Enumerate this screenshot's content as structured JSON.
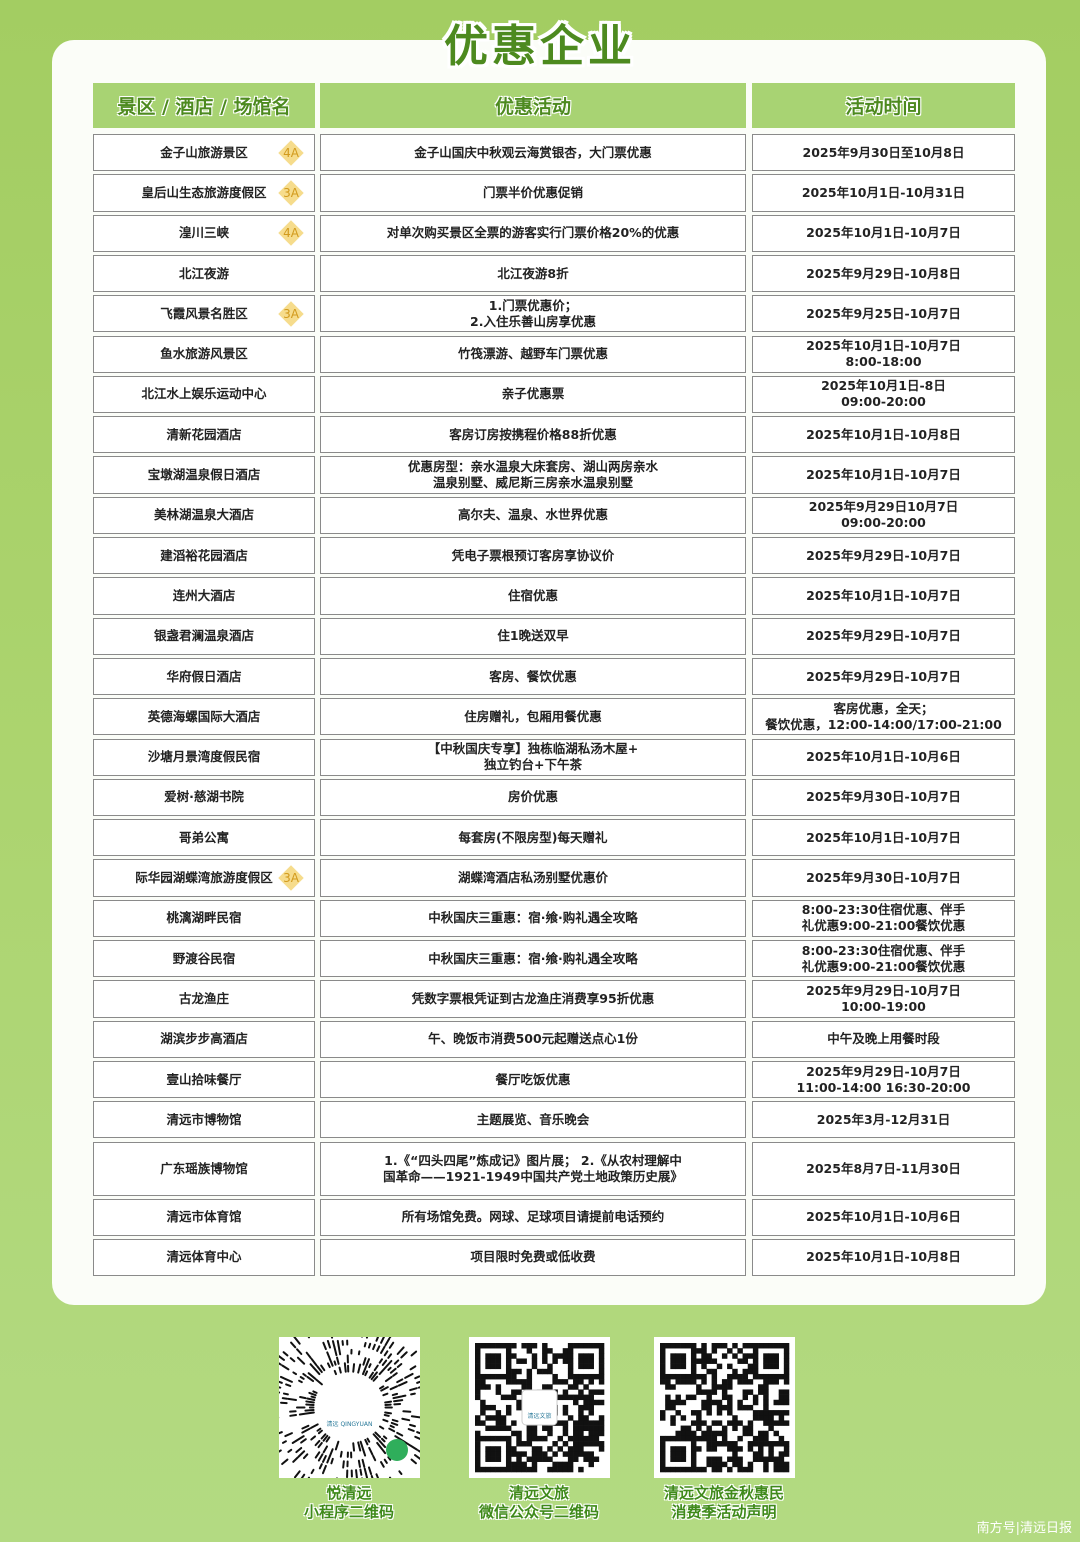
{
  "title": "优惠企业",
  "headers": [
    "景区 / 酒店 / 场馆名",
    "优惠活动",
    "活动时间"
  ],
  "rows": [
    {
      "name": "金子山旅游景区",
      "badge": "4A",
      "activity": "金子山国庆中秋观云海赏银杏，大门票优惠",
      "time": "2025年9月30日至10月8日"
    },
    {
      "name": "皇后山生态旅游度假区",
      "badge": "3A",
      "activity": "门票半价优惠促销",
      "time": "2025年10月1日-10月31日"
    },
    {
      "name": "湟川三峡",
      "badge": "4A",
      "activity": "对单次购买景区全票的游客实行门票价格20%的优惠",
      "time": "2025年10月1日-10月7日"
    },
    {
      "name": "北江夜游",
      "activity": "北江夜游8折",
      "time": "2025年9月29日-10月8日"
    },
    {
      "name": "飞霞风景名胜区",
      "badge": "3A",
      "activity": "1.门票优惠价；\n2.入住乐善山房享优惠",
      "time": "2025年9月25日-10月7日"
    },
    {
      "name": "鱼水旅游风景区",
      "activity": "竹筏漂游、越野车门票优惠",
      "time": "2025年10月1日-10月7日\n8:00-18:00"
    },
    {
      "name": "北江水上娱乐运动中心",
      "activity": "亲子优惠票",
      "time": "2025年10月1日-8日\n09:00-20:00"
    },
    {
      "name": "清新花园酒店",
      "activity": "客房订房按携程价格88折优惠",
      "time": "2025年10月1日-10月8日"
    },
    {
      "name": "宝墩湖温泉假日酒店",
      "activity": "优惠房型：亲水温泉大床套房、湖山两房亲水\n温泉别墅、威尼斯三房亲水温泉别墅",
      "time": "2025年10月1日-10月7日"
    },
    {
      "name": "美林湖温泉大酒店",
      "activity": "高尔夫、温泉、水世界优惠",
      "time": "2025年9月29日10月7日\n09:00-20:00"
    },
    {
      "name": "建滔裕花园酒店",
      "activity": "凭电子票根预订客房享协议价",
      "time": "2025年9月29日-10月7日"
    },
    {
      "name": "连州大酒店",
      "activity": "住宿优惠",
      "time": "2025年10月1日-10月7日"
    },
    {
      "name": "银盏君澜温泉酒店",
      "activity": "住1晚送双早",
      "time": "2025年9月29日-10月7日"
    },
    {
      "name": "华府假日酒店",
      "activity": "客房、餐饮优惠",
      "time": "2025年9月29日-10月7日"
    },
    {
      "name": "英德海螺国际大酒店",
      "activity": "住房赠礼，包厢用餐优惠",
      "time": "客房优惠，全天；\n餐饮优惠，12:00-14:00/17:00-21:00"
    },
    {
      "name": "沙塘月景湾度假民宿",
      "activity": "【中秋国庆专享】独栋临湖私汤木屋+\n独立钓台+下午茶",
      "time": "2025年10月1日-10月6日"
    },
    {
      "name": "爱树·慈湖书院",
      "activity": "房价优惠",
      "time": "2025年9月30日-10月7日"
    },
    {
      "name": "哥弟公寓",
      "activity": "每套房(不限房型)每天赠礼",
      "time": "2025年10月1日-10月7日"
    },
    {
      "name": "际华园湖蝶湾旅游度假区",
      "badge": "3A",
      "activity": "湖蝶湾酒店私汤别墅优惠价",
      "time": "2025年9月30日-10月7日"
    },
    {
      "name": "桃漓湖畔民宿",
      "activity": "中秋国庆三重惠：宿·飨·购礼遇全攻略",
      "time": "8:00-23:30住宿优惠、伴手\n礼优惠9:00-21:00餐饮优惠"
    },
    {
      "name": "野渡谷民宿",
      "activity": "中秋国庆三重惠：宿·飨·购礼遇全攻略",
      "time": "8:00-23:30住宿优惠、伴手\n礼优惠9:00-21:00餐饮优惠"
    },
    {
      "name": "古龙渔庄",
      "activity": "凭数字票根凭证到古龙渔庄消费享95折优惠",
      "time": "2025年9月29日-10月7日\n10:00-19:00"
    },
    {
      "name": "湖滨步步高酒店",
      "activity": "午、晚饭市消费500元起赠送点心1份",
      "time": "中午及晚上用餐时段"
    },
    {
      "name": "壹山拾味餐厅",
      "activity": "餐厅吃饭优惠",
      "time": "2025年9月29日-10月7日\n11:00-14:00 16:30-20:00"
    },
    {
      "name": "清远市博物馆",
      "activity": "主题展览、音乐晚会",
      "time": "2025年3月-12月31日"
    },
    {
      "name": "广东瑶族博物馆",
      "activity": "1.《“四头四尾”炼成记》图片展； 2.《从农村理解中\n国革命——1921-1949中国共产党土地政策历史展》",
      "time": "2025年8月7日-11月30日"
    },
    {
      "name": "清远市体育馆",
      "activity": "所有场馆免费。网球、足球项目请提前电话预约",
      "time": "2025年10月1日-10月6日"
    },
    {
      "name": "清远体育中心",
      "activity": "项目限时免费或低收费",
      "time": "2025年10月1日-10月8日"
    }
  ],
  "qrcodes": [
    {
      "icon": "mini-program-qr-code",
      "logo_text": "清远 QINGYUAN",
      "line1": "悦清远",
      "line2": "小程序二维码"
    },
    {
      "icon": "wechat-official-account-qr-code",
      "logo_text": "清远文旅",
      "line1": "清远文旅",
      "line2": "微信公众号二维码"
    },
    {
      "icon": "statement-qr-code",
      "line1": "清远文旅金秋惠民",
      "line2": "消费季活动声明"
    }
  ],
  "watermark": "南方号|清远日报",
  "colors": {
    "background": "#a8d06a",
    "header": "#a8d373",
    "title": "#4d8a1f",
    "badge": "#f6dc8c"
  }
}
